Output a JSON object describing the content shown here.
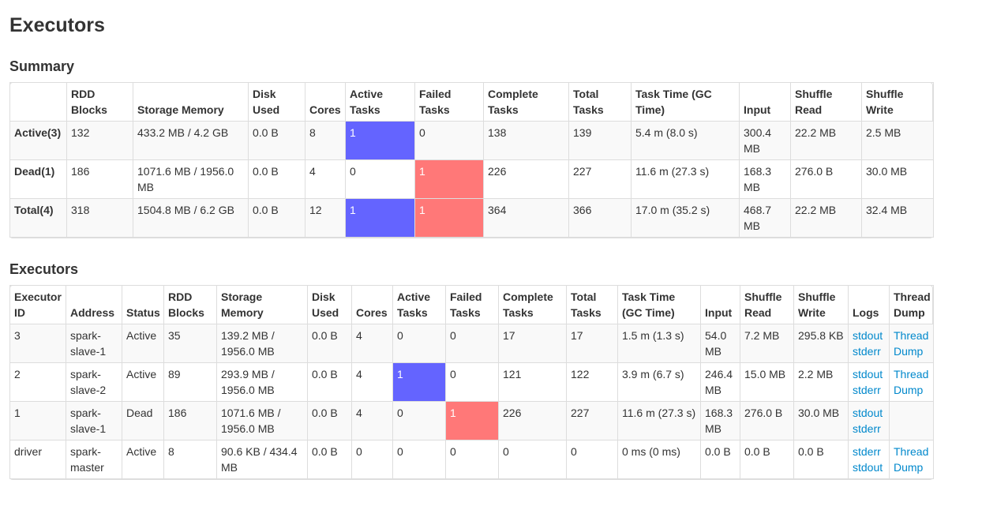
{
  "page_title": "Executors",
  "summary": {
    "heading": "Summary",
    "columns": [
      "",
      "RDD Blocks",
      "Storage Memory",
      "Disk Used",
      "Cores",
      "Active Tasks",
      "Failed Tasks",
      "Complete Tasks",
      "Total Tasks",
      "Task Time (GC Time)",
      "Input",
      "Shuffle Read",
      "Shuffle Write"
    ],
    "rows": [
      {
        "label": "Active(3)",
        "rdd_blocks": "132",
        "storage_memory": "433.2 MB / 4.2 GB",
        "disk_used": "0.0 B",
        "cores": "8",
        "active_tasks": "1",
        "failed_tasks": "0",
        "complete_tasks": "138",
        "total_tasks": "139",
        "task_time": "5.4 m (8.0 s)",
        "input": "300.4 MB",
        "shuffle_read": "22.2 MB",
        "shuffle_write": "2.5 MB"
      },
      {
        "label": "Dead(1)",
        "rdd_blocks": "186",
        "storage_memory": "1071.6 MB / 1956.0 MB",
        "disk_used": "0.0 B",
        "cores": "4",
        "active_tasks": "0",
        "failed_tasks": "1",
        "complete_tasks": "226",
        "total_tasks": "227",
        "task_time": "11.6 m (27.3 s)",
        "input": "168.3 MB",
        "shuffle_read": "276.0 B",
        "shuffle_write": "30.0 MB"
      },
      {
        "label": "Total(4)",
        "rdd_blocks": "318",
        "storage_memory": "1504.8 MB / 6.2 GB",
        "disk_used": "0.0 B",
        "cores": "12",
        "active_tasks": "1",
        "failed_tasks": "1",
        "complete_tasks": "364",
        "total_tasks": "366",
        "task_time": "17.0 m (35.2 s)",
        "input": "468.7 MB",
        "shuffle_read": "22.2 MB",
        "shuffle_write": "32.4 MB"
      }
    ]
  },
  "executors": {
    "heading": "Executors",
    "columns": [
      "Executor ID",
      "Address",
      "Status",
      "RDD Blocks",
      "Storage Memory",
      "Disk Used",
      "Cores",
      "Active Tasks",
      "Failed Tasks",
      "Complete Tasks",
      "Total Tasks",
      "Task Time (GC Time)",
      "Input",
      "Shuffle Read",
      "Shuffle Write",
      "Logs",
      "Thread Dump"
    ],
    "rows": [
      {
        "id": "3",
        "address": "spark-slave-1",
        "status": "Active",
        "rdd_blocks": "35",
        "storage_memory": "139.2 MB / 1956.0 MB",
        "disk_used": "0.0 B",
        "cores": "4",
        "active_tasks": "0",
        "failed_tasks": "0",
        "complete_tasks": "17",
        "total_tasks": "17",
        "task_time": "1.5 m (1.3 s)",
        "input": "54.0 MB",
        "shuffle_read": "7.2 MB",
        "shuffle_write": "295.8 KB",
        "logs": [
          "stdout",
          "stderr"
        ],
        "thread_dump": "Thread Dump"
      },
      {
        "id": "2",
        "address": "spark-slave-2",
        "status": "Active",
        "rdd_blocks": "89",
        "storage_memory": "293.9 MB / 1956.0 MB",
        "disk_used": "0.0 B",
        "cores": "4",
        "active_tasks": "1",
        "failed_tasks": "0",
        "complete_tasks": "121",
        "total_tasks": "122",
        "task_time": "3.9 m (6.7 s)",
        "input": "246.4 MB",
        "shuffle_read": "15.0 MB",
        "shuffle_write": "2.2 MB",
        "logs": [
          "stdout",
          "stderr"
        ],
        "thread_dump": "Thread Dump"
      },
      {
        "id": "1",
        "address": "spark-slave-1",
        "status": "Dead",
        "rdd_blocks": "186",
        "storage_memory": "1071.6 MB / 1956.0 MB",
        "disk_used": "0.0 B",
        "cores": "4",
        "active_tasks": "0",
        "failed_tasks": "1",
        "complete_tasks": "226",
        "total_tasks": "227",
        "task_time": "11.6 m (27.3 s)",
        "input": "168.3 MB",
        "shuffle_read": "276.0 B",
        "shuffle_write": "30.0 MB",
        "logs": [
          "stdout",
          "stderr"
        ],
        "thread_dump": ""
      },
      {
        "id": "driver",
        "address": "spark-master",
        "status": "Active",
        "rdd_blocks": "8",
        "storage_memory": "90.6 KB / 434.4 MB",
        "disk_used": "0.0 B",
        "cores": "0",
        "active_tasks": "0",
        "failed_tasks": "0",
        "complete_tasks": "0",
        "total_tasks": "0",
        "task_time": "0 ms (0 ms)",
        "input": "0.0 B",
        "shuffle_read": "0.0 B",
        "shuffle_write": "0.0 B",
        "logs": [
          "stderr",
          "stdout"
        ],
        "thread_dump": "Thread Dump"
      }
    ]
  },
  "colors": {
    "active_task_fill": "#6464ff",
    "failed_task_fill": "#ff7878",
    "link": "#0088cc"
  }
}
